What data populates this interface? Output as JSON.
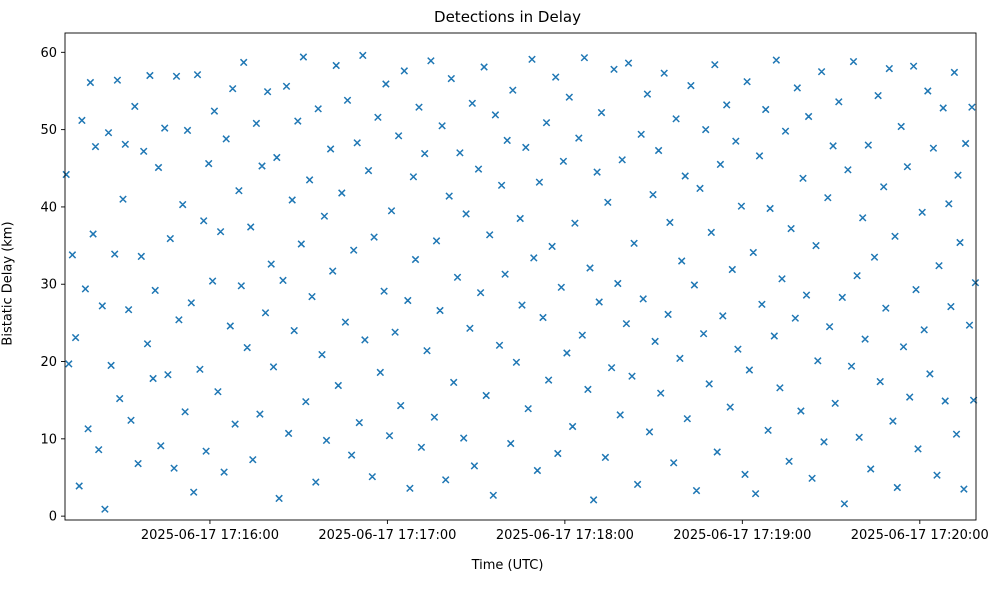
{
  "figure": {
    "title": "Detections in Delay",
    "xlabel": "Time (UTC)",
    "ylabel": "Bistatic Delay (km)"
  },
  "chart_data": {
    "type": "scatter",
    "title": "Detections in Delay",
    "xlabel": "Time (UTC)",
    "ylabel": "Bistatic Delay (km)",
    "marker": "x",
    "marker_color": "#1f77b4",
    "grid": false,
    "legend": "none",
    "x_unit": "seconds after 2025-06-17 17:15:00 UTC",
    "xlim": [
      11,
      319
    ],
    "ylim": [
      -0.5,
      62.5
    ],
    "yticks": [
      0,
      10,
      20,
      30,
      40,
      50,
      60
    ],
    "xticks": [
      {
        "value": 60,
        "label": "2025-06-17 17:16:00"
      },
      {
        "value": 120,
        "label": "2025-06-17 17:17:00"
      },
      {
        "value": 180,
        "label": "2025-06-17 17:18:00"
      },
      {
        "value": 240,
        "label": "2025-06-17 17:19:00"
      },
      {
        "value": 300,
        "label": "2025-06-17 17:20:00"
      }
    ],
    "points": [
      [
        11.4,
        44.2
      ],
      [
        12.3,
        19.7
      ],
      [
        13.5,
        33.8
      ],
      [
        14.6,
        23.1
      ],
      [
        15.8,
        3.9
      ],
      [
        16.7,
        51.2
      ],
      [
        17.9,
        29.4
      ],
      [
        18.8,
        11.3
      ],
      [
        19.6,
        56.1
      ],
      [
        20.5,
        36.5
      ],
      [
        21.3,
        47.8
      ],
      [
        22.4,
        8.6
      ],
      [
        23.6,
        27.2
      ],
      [
        24.5,
        0.9
      ],
      [
        25.7,
        49.6
      ],
      [
        26.6,
        19.5
      ],
      [
        27.8,
        33.9
      ],
      [
        28.7,
        56.4
      ],
      [
        29.5,
        15.2
      ],
      [
        30.6,
        41.0
      ],
      [
        31.4,
        48.1
      ],
      [
        32.5,
        26.7
      ],
      [
        33.3,
        12.4
      ],
      [
        34.6,
        53.0
      ],
      [
        35.7,
        6.8
      ],
      [
        36.8,
        33.6
      ],
      [
        37.6,
        47.2
      ],
      [
        38.9,
        22.3
      ],
      [
        39.7,
        57.0
      ],
      [
        40.8,
        17.8
      ],
      [
        41.5,
        29.2
      ],
      [
        42.6,
        45.1
      ],
      [
        43.4,
        9.1
      ],
      [
        44.7,
        50.2
      ],
      [
        45.8,
        18.3
      ],
      [
        46.6,
        35.9
      ],
      [
        47.9,
        6.2
      ],
      [
        48.7,
        56.9
      ],
      [
        49.5,
        25.4
      ],
      [
        50.8,
        40.3
      ],
      [
        51.6,
        13.5
      ],
      [
        52.4,
        49.9
      ],
      [
        53.7,
        27.6
      ],
      [
        54.5,
        3.1
      ],
      [
        55.8,
        57.1
      ],
      [
        56.6,
        19.0
      ],
      [
        57.9,
        38.2
      ],
      [
        58.7,
        8.4
      ],
      [
        59.6,
        45.6
      ],
      [
        60.9,
        30.4
      ],
      [
        61.5,
        52.4
      ],
      [
        62.7,
        16.1
      ],
      [
        63.6,
        36.8
      ],
      [
        64.8,
        5.7
      ],
      [
        65.5,
        48.8
      ],
      [
        66.9,
        24.6
      ],
      [
        67.7,
        55.3
      ],
      [
        68.5,
        11.9
      ],
      [
        69.8,
        42.1
      ],
      [
        70.6,
        29.8
      ],
      [
        71.4,
        58.7
      ],
      [
        72.6,
        21.8
      ],
      [
        73.8,
        37.4
      ],
      [
        74.5,
        7.3
      ],
      [
        75.7,
        50.8
      ],
      [
        76.9,
        13.2
      ],
      [
        77.6,
        45.3
      ],
      [
        78.8,
        26.3
      ],
      [
        79.5,
        54.9
      ],
      [
        80.7,
        32.6
      ],
      [
        81.5,
        19.3
      ],
      [
        82.6,
        46.4
      ],
      [
        83.4,
        2.3
      ],
      [
        84.7,
        30.5
      ],
      [
        85.9,
        55.6
      ],
      [
        86.6,
        10.7
      ],
      [
        87.8,
        40.9
      ],
      [
        88.5,
        24.0
      ],
      [
        89.7,
        51.1
      ],
      [
        90.9,
        35.2
      ],
      [
        91.6,
        59.4
      ],
      [
        92.4,
        14.8
      ],
      [
        93.7,
        43.5
      ],
      [
        94.5,
        28.4
      ],
      [
        95.8,
        4.4
      ],
      [
        96.6,
        52.7
      ],
      [
        97.9,
        20.9
      ],
      [
        98.7,
        38.8
      ],
      [
        99.4,
        9.8
      ],
      [
        100.8,
        47.5
      ],
      [
        101.5,
        31.7
      ],
      [
        102.7,
        58.3
      ],
      [
        103.4,
        16.9
      ],
      [
        104.6,
        41.8
      ],
      [
        105.8,
        25.1
      ],
      [
        106.5,
        53.8
      ],
      [
        107.9,
        7.9
      ],
      [
        108.6,
        34.4
      ],
      [
        109.8,
        48.3
      ],
      [
        110.5,
        12.1
      ],
      [
        111.7,
        59.6
      ],
      [
        112.4,
        22.8
      ],
      [
        113.6,
        44.7
      ],
      [
        114.9,
        5.1
      ],
      [
        115.5,
        36.1
      ],
      [
        116.8,
        51.6
      ],
      [
        117.6,
        18.6
      ],
      [
        118.9,
        29.1
      ],
      [
        119.5,
        55.9
      ],
      [
        120.7,
        10.4
      ],
      [
        121.4,
        39.5
      ],
      [
        122.6,
        23.8
      ],
      [
        123.8,
        49.2
      ],
      [
        124.5,
        14.3
      ],
      [
        125.7,
        57.6
      ],
      [
        126.9,
        27.9
      ],
      [
        127.6,
        3.6
      ],
      [
        128.8,
        43.9
      ],
      [
        129.5,
        33.2
      ],
      [
        130.7,
        52.9
      ],
      [
        131.5,
        8.9
      ],
      [
        132.6,
        46.9
      ],
      [
        133.4,
        21.4
      ],
      [
        134.7,
        58.9
      ],
      [
        135.9,
        12.8
      ],
      [
        136.6,
        35.6
      ],
      [
        137.8,
        26.6
      ],
      [
        138.5,
        50.5
      ],
      [
        139.7,
        4.7
      ],
      [
        140.9,
        41.4
      ],
      [
        141.6,
        56.6
      ],
      [
        142.4,
        17.3
      ],
      [
        143.7,
        30.9
      ],
      [
        144.5,
        47.0
      ],
      [
        145.8,
        10.1
      ],
      [
        146.6,
        39.1
      ],
      [
        147.9,
        24.3
      ],
      [
        148.7,
        53.4
      ],
      [
        149.4,
        6.5
      ],
      [
        150.8,
        44.9
      ],
      [
        151.5,
        28.9
      ],
      [
        152.7,
        58.1
      ],
      [
        153.4,
        15.6
      ],
      [
        154.6,
        36.4
      ],
      [
        155.8,
        2.7
      ],
      [
        156.5,
        51.9
      ],
      [
        157.9,
        22.1
      ],
      [
        158.6,
        42.8
      ],
      [
        159.8,
        31.3
      ],
      [
        160.5,
        48.6
      ],
      [
        161.7,
        9.4
      ],
      [
        162.4,
        55.1
      ],
      [
        163.6,
        19.9
      ],
      [
        164.9,
        38.5
      ],
      [
        165.5,
        27.3
      ],
      [
        166.8,
        47.7
      ],
      [
        167.6,
        13.9
      ],
      [
        168.9,
        59.1
      ],
      [
        169.5,
        33.4
      ],
      [
        170.7,
        5.9
      ],
      [
        171.4,
        43.2
      ],
      [
        172.6,
        25.7
      ],
      [
        173.8,
        50.9
      ],
      [
        174.5,
        17.6
      ],
      [
        175.7,
        34.9
      ],
      [
        176.9,
        56.8
      ],
      [
        177.6,
        8.1
      ],
      [
        178.8,
        29.6
      ],
      [
        179.5,
        45.9
      ],
      [
        180.7,
        21.1
      ],
      [
        181.5,
        54.2
      ],
      [
        182.6,
        11.6
      ],
      [
        183.4,
        37.9
      ],
      [
        184.7,
        48.9
      ],
      [
        185.9,
        23.4
      ],
      [
        186.6,
        59.3
      ],
      [
        187.8,
        16.4
      ],
      [
        188.5,
        32.1
      ],
      [
        189.7,
        2.1
      ],
      [
        190.9,
        44.5
      ],
      [
        191.6,
        27.7
      ],
      [
        192.4,
        52.2
      ],
      [
        193.7,
        7.6
      ],
      [
        194.5,
        40.6
      ],
      [
        195.8,
        19.2
      ],
      [
        196.6,
        57.8
      ],
      [
        197.9,
        30.1
      ],
      [
        198.7,
        13.1
      ],
      [
        199.4,
        46.1
      ],
      [
        200.8,
        24.9
      ],
      [
        201.5,
        58.6
      ],
      [
        202.7,
        18.1
      ],
      [
        203.4,
        35.3
      ],
      [
        204.6,
        4.1
      ],
      [
        205.8,
        49.4
      ],
      [
        206.5,
        28.1
      ],
      [
        207.9,
        54.6
      ],
      [
        208.6,
        10.9
      ],
      [
        209.8,
        41.6
      ],
      [
        210.5,
        22.6
      ],
      [
        211.7,
        47.3
      ],
      [
        212.4,
        15.9
      ],
      [
        213.6,
        57.3
      ],
      [
        214.9,
        26.1
      ],
      [
        215.5,
        38.0
      ],
      [
        216.8,
        6.9
      ],
      [
        217.6,
        51.4
      ],
      [
        218.9,
        20.4
      ],
      [
        219.5,
        33.0
      ],
      [
        220.7,
        44.0
      ],
      [
        221.4,
        12.6
      ],
      [
        222.6,
        55.7
      ],
      [
        223.8,
        29.9
      ],
      [
        224.5,
        3.3
      ],
      [
        225.7,
        42.4
      ],
      [
        226.9,
        23.6
      ],
      [
        227.6,
        50.0
      ],
      [
        228.8,
        17.1
      ],
      [
        229.5,
        36.7
      ],
      [
        230.7,
        58.4
      ],
      [
        231.5,
        8.3
      ],
      [
        232.6,
        45.5
      ],
      [
        233.4,
        25.9
      ],
      [
        234.7,
        53.2
      ],
      [
        235.9,
        14.1
      ],
      [
        236.6,
        31.9
      ],
      [
        237.8,
        48.5
      ],
      [
        238.5,
        21.6
      ],
      [
        239.7,
        40.1
      ],
      [
        240.9,
        5.4
      ],
      [
        241.6,
        56.2
      ],
      [
        242.4,
        18.9
      ],
      [
        243.7,
        34.1
      ],
      [
        244.5,
        2.9
      ],
      [
        245.8,
        46.6
      ],
      [
        246.6,
        27.4
      ],
      [
        247.9,
        52.6
      ],
      [
        248.7,
        11.1
      ],
      [
        249.4,
        39.8
      ],
      [
        250.8,
        23.3
      ],
      [
        251.5,
        59.0
      ],
      [
        252.7,
        16.6
      ],
      [
        253.4,
        30.7
      ],
      [
        254.6,
        49.8
      ],
      [
        255.8,
        7.1
      ],
      [
        256.5,
        37.2
      ],
      [
        257.9,
        25.6
      ],
      [
        258.6,
        55.4
      ],
      [
        259.8,
        13.6
      ],
      [
        260.5,
        43.7
      ],
      [
        261.7,
        28.6
      ],
      [
        262.4,
        51.7
      ],
      [
        263.6,
        4.9
      ],
      [
        264.9,
        35.0
      ],
      [
        265.5,
        20.1
      ],
      [
        266.8,
        57.5
      ],
      [
        267.6,
        9.6
      ],
      [
        268.9,
        41.2
      ],
      [
        269.5,
        24.5
      ],
      [
        270.7,
        47.9
      ],
      [
        271.4,
        14.6
      ],
      [
        272.6,
        53.6
      ],
      [
        273.8,
        28.3
      ],
      [
        274.5,
        1.6
      ],
      [
        275.7,
        44.8
      ],
      [
        276.9,
        19.4
      ],
      [
        277.6,
        58.8
      ],
      [
        278.8,
        31.1
      ],
      [
        279.5,
        10.2
      ],
      [
        280.7,
        38.6
      ],
      [
        281.5,
        22.9
      ],
      [
        282.6,
        48.0
      ],
      [
        283.4,
        6.1
      ],
      [
        284.7,
        33.5
      ],
      [
        285.9,
        54.4
      ],
      [
        286.6,
        17.4
      ],
      [
        287.8,
        42.6
      ],
      [
        288.5,
        26.9
      ],
      [
        289.7,
        57.9
      ],
      [
        290.9,
        12.3
      ],
      [
        291.6,
        36.2
      ],
      [
        292.4,
        3.7
      ],
      [
        293.7,
        50.4
      ],
      [
        294.5,
        21.9
      ],
      [
        295.8,
        45.2
      ],
      [
        296.6,
        15.4
      ],
      [
        297.9,
        58.2
      ],
      [
        298.7,
        29.3
      ],
      [
        299.4,
        8.7
      ],
      [
        300.8,
        39.3
      ],
      [
        301.5,
        24.1
      ],
      [
        302.7,
        55.0
      ],
      [
        303.4,
        18.4
      ],
      [
        304.6,
        47.6
      ],
      [
        305.8,
        5.3
      ],
      [
        306.5,
        32.4
      ],
      [
        307.9,
        52.8
      ],
      [
        308.6,
        14.9
      ],
      [
        309.8,
        40.4
      ],
      [
        310.5,
        27.1
      ],
      [
        311.7,
        57.4
      ],
      [
        312.4,
        10.6
      ],
      [
        312.9,
        44.1
      ],
      [
        313.6,
        35.4
      ],
      [
        314.9,
        3.5
      ],
      [
        315.5,
        48.2
      ],
      [
        316.8,
        24.7
      ],
      [
        317.6,
        52.9
      ],
      [
        318.2,
        15.0
      ],
      [
        318.8,
        30.2
      ]
    ]
  }
}
